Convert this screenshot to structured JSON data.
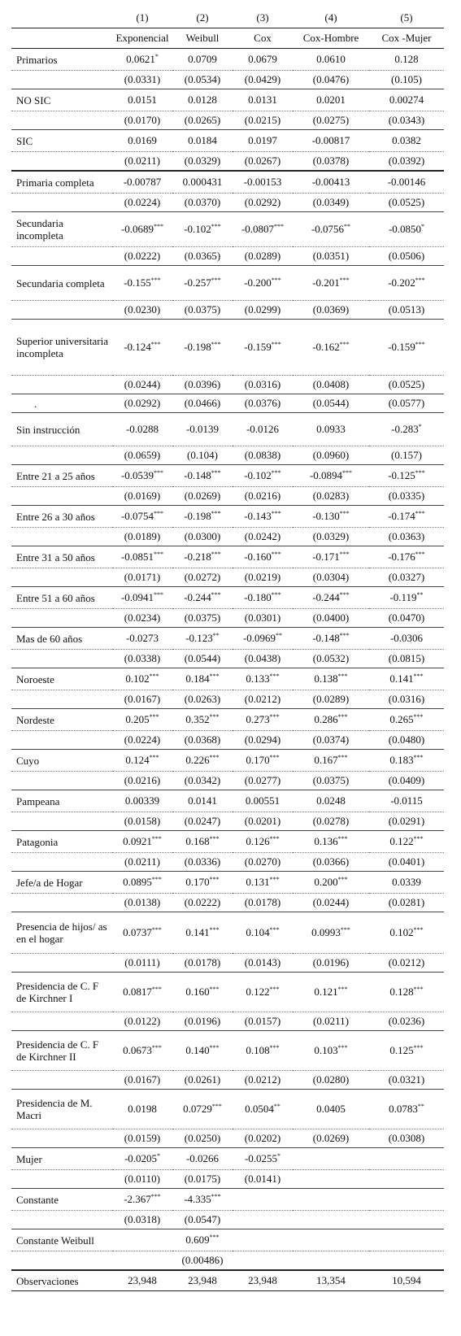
{
  "headers": {
    "numbers": [
      "(1)",
      "(2)",
      "(3)",
      "(4)",
      "(5)"
    ],
    "models": [
      "Exponencial",
      "Weibull",
      "Cox",
      "Cox-Hombre",
      "Cox -Mujer"
    ]
  },
  "rows": [
    {
      "label": "Primarios",
      "coef": [
        [
          "0.0621",
          "*"
        ],
        [
          "0.0709",
          ""
        ],
        [
          "0.0679",
          ""
        ],
        [
          "0.0610",
          ""
        ],
        [
          "0.128",
          ""
        ]
      ],
      "se": [
        "(0.0331)",
        "(0.0534)",
        "(0.0429)",
        "(0.0476)",
        "(0.105)"
      ],
      "h": 26
    },
    {
      "label": "NO SIC",
      "coef": [
        [
          "0.0151",
          ""
        ],
        [
          "0.0128",
          ""
        ],
        [
          "0.0131",
          ""
        ],
        [
          "0.0201",
          ""
        ],
        [
          "0.00274",
          ""
        ]
      ],
      "se": [
        "(0.0170)",
        "(0.0265)",
        "(0.0215)",
        "(0.0275)",
        "(0.0343)"
      ],
      "h": 26
    },
    {
      "label": "SIC",
      "coef": [
        [
          "0.0169",
          ""
        ],
        [
          "0.0184",
          ""
        ],
        [
          "0.0197",
          ""
        ],
        [
          "-0.00817",
          ""
        ],
        [
          "0.0382",
          ""
        ]
      ],
      "se": [
        "(0.0211)",
        "(0.0329)",
        "(0.0267)",
        "(0.0378)",
        "(0.0392)"
      ],
      "h": 26,
      "thick": true
    },
    {
      "label": "Primaria completa",
      "coef": [
        [
          "-0.00787",
          ""
        ],
        [
          "0.000431",
          ""
        ],
        [
          "-0.00153",
          ""
        ],
        [
          "-0.00413",
          ""
        ],
        [
          "-0.00146",
          ""
        ]
      ],
      "se": [
        "(0.0224)",
        "(0.0370)",
        "(0.0292)",
        "(0.0349)",
        "(0.0525)"
      ],
      "h": 26
    },
    {
      "label": "Secundaria incompleta",
      "coef": [
        [
          "-0.0689",
          "***"
        ],
        [
          "-0.102",
          "***"
        ],
        [
          "-0.0807",
          "***"
        ],
        [
          "-0.0756",
          "**"
        ],
        [
          "-0.0850",
          "*"
        ]
      ],
      "se": [
        "(0.0222)",
        "(0.0365)",
        "(0.0289)",
        "(0.0351)",
        "(0.0506)"
      ],
      "h": 42
    },
    {
      "label": "Secundaria completa",
      "coef": [
        [
          "-0.155",
          "***"
        ],
        [
          "-0.257",
          "***"
        ],
        [
          "-0.200",
          "***"
        ],
        [
          "-0.201",
          "***"
        ],
        [
          "-0.202",
          "***"
        ]
      ],
      "se": [
        "(0.0230)",
        "(0.0375)",
        "(0.0299)",
        "(0.0369)",
        "(0.0513)"
      ],
      "h": 42
    },
    {
      "label": "Superior universitaria incompleta",
      "coef": [
        [
          "-0.124",
          "***"
        ],
        [
          "-0.198",
          "***"
        ],
        [
          "-0.159",
          "***"
        ],
        [
          "-0.162",
          "***"
        ],
        [
          "-0.159",
          "***"
        ]
      ],
      "se": [
        "(0.0244)",
        "(0.0396)",
        "(0.0316)",
        "(0.0408)",
        "(0.0525)"
      ],
      "h": 68
    },
    {
      "se": [
        "(0.0292)",
        "(0.0466)",
        "(0.0376)",
        "(0.0544)",
        "(0.0577)"
      ],
      "extra_dot": "."
    },
    {
      "label": "Sin instrucción",
      "coef": [
        [
          "-0.0288",
          ""
        ],
        [
          "-0.0139",
          ""
        ],
        [
          "-0.0126",
          ""
        ],
        [
          "0.0933",
          ""
        ],
        [
          "-0.283",
          "*"
        ]
      ],
      "se": [
        "(0.0659)",
        "(0.104)",
        "(0.0838)",
        "(0.0960)",
        "(0.157)"
      ],
      "h": 40
    },
    {
      "label": "Entre 21 a 25 años",
      "coef": [
        [
          "-0.0539",
          "***"
        ],
        [
          "-0.148",
          "***"
        ],
        [
          "-0.102",
          "***"
        ],
        [
          "-0.0894",
          "***"
        ],
        [
          "-0.125",
          "***"
        ]
      ],
      "se": [
        "(0.0169)",
        "(0.0269)",
        "(0.0216)",
        "(0.0283)",
        "(0.0335)"
      ],
      "h": 26
    },
    {
      "label": "Entre 26 a 30 años",
      "coef": [
        [
          "-0.0754",
          "***"
        ],
        [
          "-0.198",
          "***"
        ],
        [
          "-0.143",
          "***"
        ],
        [
          "-0.130",
          "***"
        ],
        [
          "-0.174",
          "***"
        ]
      ],
      "se": [
        "(0.0189)",
        "(0.0300)",
        "(0.0242)",
        "(0.0329)",
        "(0.0363)"
      ],
      "h": 26
    },
    {
      "label": "Entre 31 a 50 años",
      "coef": [
        [
          "-0.0851",
          "***"
        ],
        [
          "-0.218",
          "***"
        ],
        [
          "-0.160",
          "***"
        ],
        [
          "-0.171",
          "***"
        ],
        [
          "-0.176",
          "***"
        ]
      ],
      "se": [
        "(0.0171)",
        "(0.0272)",
        "(0.0219)",
        "(0.0304)",
        "(0.0327)"
      ],
      "h": 26
    },
    {
      "label": "Entre 51 a 60 años",
      "coef": [
        [
          "-0.0941",
          "***"
        ],
        [
          "-0.244",
          "***"
        ],
        [
          "-0.180",
          "***"
        ],
        [
          "-0.244",
          "***"
        ],
        [
          "-0.119",
          "**"
        ]
      ],
      "se": [
        "(0.0234)",
        "(0.0375)",
        "(0.0301)",
        "(0.0400)",
        "(0.0470)"
      ],
      "h": 26
    },
    {
      "label": "Mas de 60 años",
      "coef": [
        [
          "-0.0273",
          ""
        ],
        [
          "-0.123",
          "**"
        ],
        [
          "-0.0969",
          "**"
        ],
        [
          "-0.148",
          "***"
        ],
        [
          "-0.0306",
          ""
        ]
      ],
      "se": [
        "(0.0338)",
        "(0.0544)",
        "(0.0438)",
        "(0.0532)",
        "(0.0815)"
      ],
      "h": 26
    },
    {
      "label": "Noroeste",
      "coef": [
        [
          "0.102",
          "***"
        ],
        [
          "0.184",
          "***"
        ],
        [
          "0.133",
          "***"
        ],
        [
          "0.138",
          "***"
        ],
        [
          "0.141",
          "***"
        ]
      ],
      "se": [
        "(0.0167)",
        "(0.0263)",
        "(0.0212)",
        "(0.0289)",
        "(0.0316)"
      ],
      "h": 26
    },
    {
      "label": "Nordeste",
      "coef": [
        [
          "0.205",
          "***"
        ],
        [
          "0.352",
          "***"
        ],
        [
          "0.273",
          "***"
        ],
        [
          "0.286",
          "***"
        ],
        [
          "0.265",
          "***"
        ]
      ],
      "se": [
        "(0.0224)",
        "(0.0368)",
        "(0.0294)",
        "(0.0374)",
        "(0.0480)"
      ],
      "h": 26
    },
    {
      "label": "Cuyo",
      "coef": [
        [
          "0.124",
          "***"
        ],
        [
          "0.226",
          "***"
        ],
        [
          "0.170",
          "***"
        ],
        [
          "0.167",
          "***"
        ],
        [
          "0.183",
          "***"
        ]
      ],
      "se": [
        "(0.0216)",
        "(0.0342)",
        "(0.0277)",
        "(0.0375)",
        "(0.0409)"
      ],
      "h": 26
    },
    {
      "label": "Pampeana",
      "coef": [
        [
          "0.00339",
          ""
        ],
        [
          "0.0141",
          ""
        ],
        [
          "0.00551",
          ""
        ],
        [
          "0.0248",
          ""
        ],
        [
          "-0.0115",
          ""
        ]
      ],
      "se": [
        "(0.0158)",
        "(0.0247)",
        "(0.0201)",
        "(0.0278)",
        "(0.0291)"
      ],
      "h": 26
    },
    {
      "label": "Patagonia",
      "coef": [
        [
          "0.0921",
          "***"
        ],
        [
          "0.168",
          "***"
        ],
        [
          "0.126",
          "***"
        ],
        [
          "0.136",
          "***"
        ],
        [
          "0.122",
          "***"
        ]
      ],
      "se": [
        "(0.0211)",
        "(0.0336)",
        "(0.0270)",
        "(0.0366)",
        "(0.0401)"
      ],
      "h": 26
    },
    {
      "label": "Jefe/a de Hogar",
      "coef": [
        [
          "0.0895",
          "***"
        ],
        [
          "0.170",
          "***"
        ],
        [
          "0.131",
          "***"
        ],
        [
          "0.200",
          "***"
        ],
        [
          "0.0339",
          ""
        ]
      ],
      "se": [
        "(0.0138)",
        "(0.0222)",
        "(0.0178)",
        "(0.0244)",
        "(0.0281)"
      ],
      "h": 26
    },
    {
      "label": "Presencia de hijos/ as en el hogar",
      "coef": [
        [
          "0.0737",
          "***"
        ],
        [
          "0.141",
          "***"
        ],
        [
          "0.104",
          "***"
        ],
        [
          "0.0993",
          "***"
        ],
        [
          "0.102",
          "***"
        ]
      ],
      "se": [
        "(0.0111)",
        "(0.0178)",
        "(0.0143)",
        "(0.0196)",
        "(0.0212)"
      ],
      "h": 50
    },
    {
      "label": "Presidencia de C. F de Kirchner I",
      "coef": [
        [
          "0.0817",
          "***"
        ],
        [
          "0.160",
          "***"
        ],
        [
          "0.122",
          "***"
        ],
        [
          "0.121",
          "***"
        ],
        [
          "0.128",
          "***"
        ]
      ],
      "se": [
        "(0.0122)",
        "(0.0196)",
        "(0.0157)",
        "(0.0211)",
        "(0.0236)"
      ],
      "h": 48
    },
    {
      "label": "Presidencia de C. F de Kirchner II",
      "coef": [
        [
          "0.0673",
          "***"
        ],
        [
          "0.140",
          "***"
        ],
        [
          "0.108",
          "***"
        ],
        [
          "0.103",
          "***"
        ],
        [
          "0.125",
          "***"
        ]
      ],
      "se": [
        "(0.0167)",
        "(0.0261)",
        "(0.0212)",
        "(0.0280)",
        "(0.0321)"
      ],
      "h": 48
    },
    {
      "label": "Presidencia de M. Macri",
      "coef": [
        [
          "0.0198",
          ""
        ],
        [
          "0.0729",
          "***"
        ],
        [
          "0.0504",
          "**"
        ],
        [
          "0.0405",
          ""
        ],
        [
          "0.0783",
          "**"
        ]
      ],
      "se": [
        "(0.0159)",
        "(0.0250)",
        "(0.0202)",
        "(0.0269)",
        "(0.0308)"
      ],
      "h": 48
    },
    {
      "label": "Mujer",
      "coef": [
        [
          "-0.0205",
          "*"
        ],
        [
          "-0.0266",
          ""
        ],
        [
          "-0.0255",
          "*"
        ],
        [
          "",
          ""
        ],
        [
          "",
          ""
        ]
      ],
      "se": [
        "(0.0110)",
        "(0.0175)",
        "(0.0141)",
        "",
        ""
      ],
      "h": 26
    },
    {
      "label": "Constante",
      "coef": [
        [
          "-2.367",
          "***"
        ],
        [
          "-4.335",
          "***"
        ],
        [
          "",
          ""
        ],
        [
          "",
          ""
        ],
        [
          "",
          ""
        ]
      ],
      "se": [
        "(0.0318)",
        "(0.0547)",
        "",
        "",
        ""
      ],
      "h": 26
    },
    {
      "label": "Constante Weibull",
      "coef": [
        [
          "",
          ""
        ],
        [
          "0.609",
          "***"
        ],
        [
          "",
          ""
        ],
        [
          "",
          ""
        ],
        [
          "",
          ""
        ]
      ],
      "se": [
        "",
        "(0.00486)",
        "",
        "",
        ""
      ],
      "h": 26
    }
  ],
  "observations": {
    "label": "Observaciones",
    "values": [
      "23,948",
      "23,948",
      "23,948",
      "13,354",
      "10,594"
    ]
  }
}
